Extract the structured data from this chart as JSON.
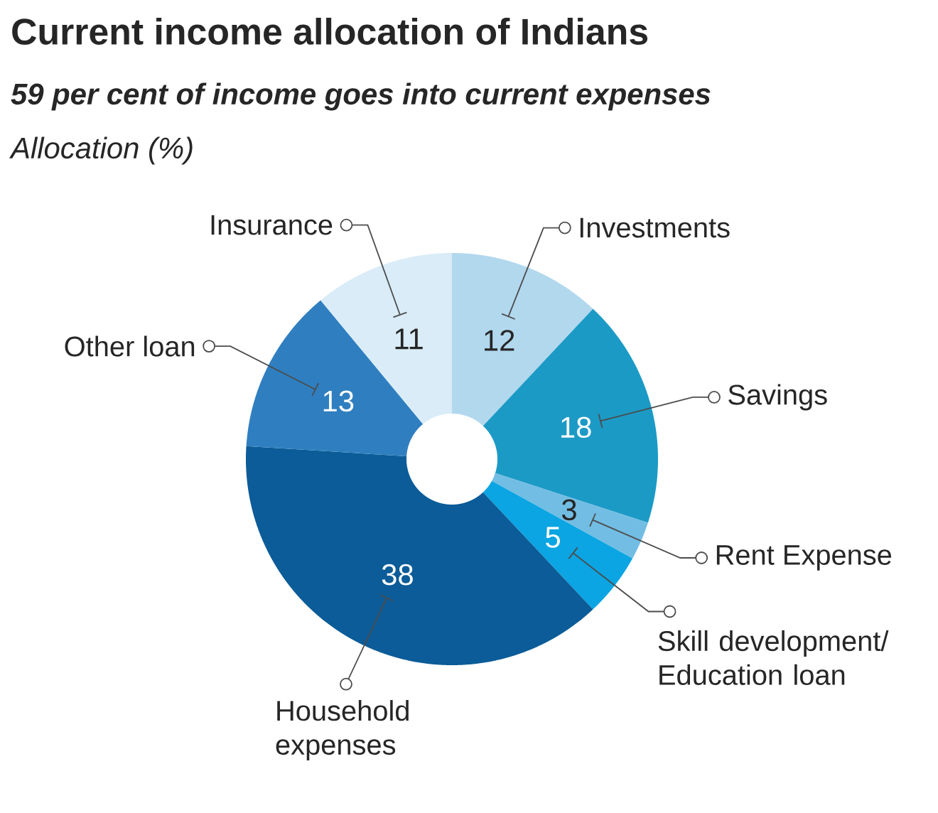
{
  "chart_data": {
    "type": "donut",
    "title": "Current income allocation of Indians",
    "subtitle": "59 per cent of income goes into current expenses",
    "annotations": [
      "Allocation (%)"
    ],
    "categories": [
      "Investments",
      "Savings",
      "Rent Expense",
      "Skill development/ Education loan",
      "Household expenses",
      "Other loan",
      "Insurance"
    ],
    "values": [
      12,
      18,
      3,
      5,
      38,
      13,
      11
    ],
    "colors": [
      "#b2d8ee",
      "#1c9ac6",
      "#72bde3",
      "#0aa5e2",
      "#0b5c98",
      "#2f7fc0",
      "#d9ecf7"
    ],
    "data_labels": true
  }
}
